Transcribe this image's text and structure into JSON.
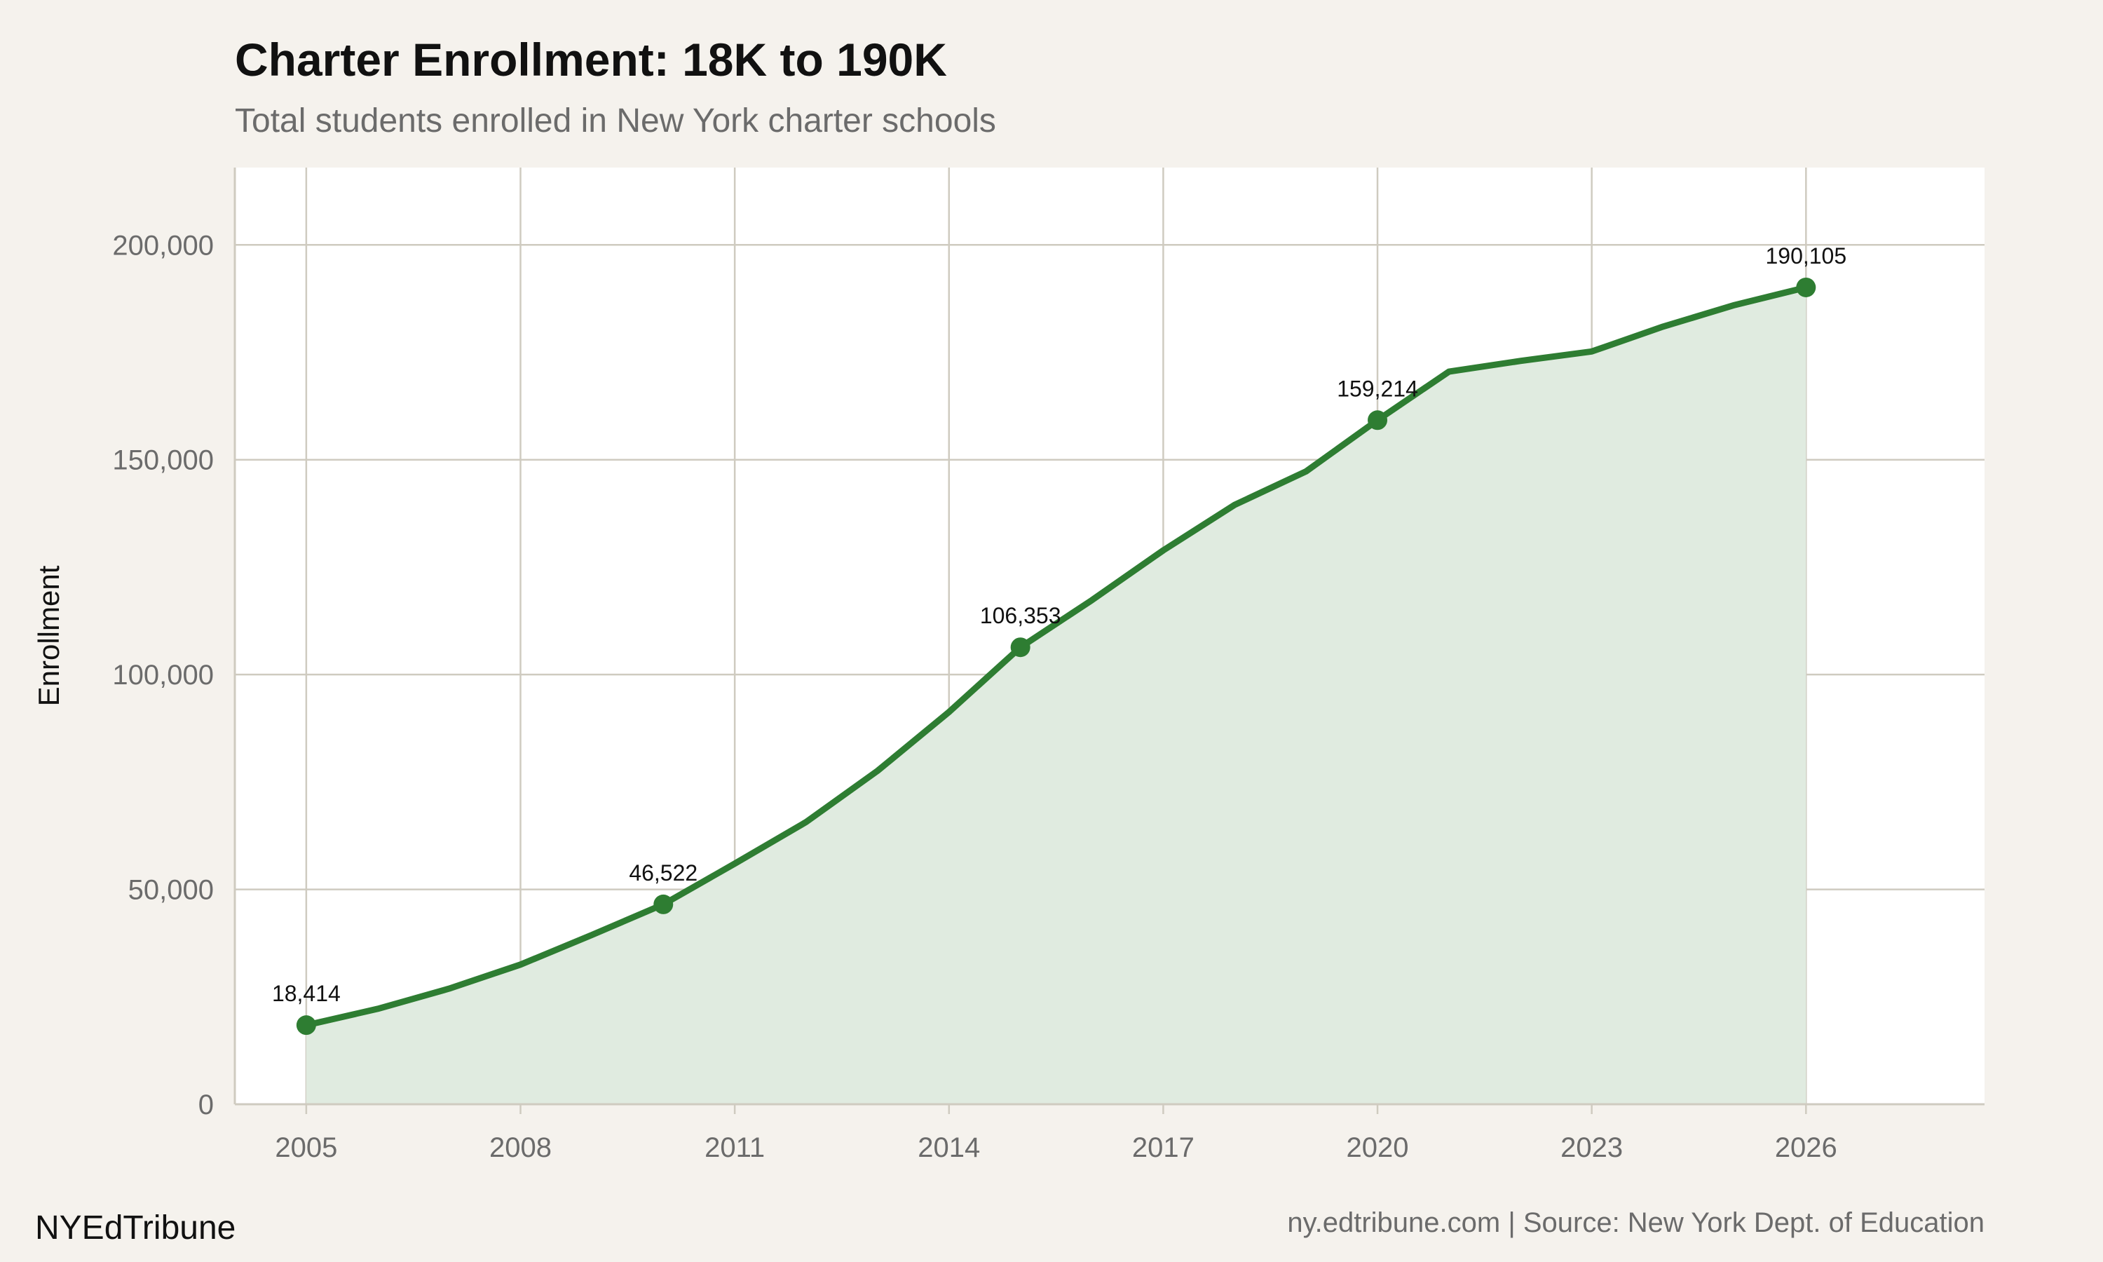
{
  "chart_data": {
    "type": "area",
    "title": "Charter Enrollment: 18K to 190K",
    "subtitle": "Total students enrolled in New York charter schools",
    "xlabel": "",
    "ylabel": "Enrollment",
    "x": [
      2005,
      2006,
      2007,
      2008,
      2009,
      2010,
      2011,
      2012,
      2013,
      2014,
      2015,
      2016,
      2017,
      2018,
      2019,
      2020,
      2021,
      2022,
      2023,
      2024,
      2025,
      2026
    ],
    "values": [
      18414,
      22200,
      26900,
      32500,
      39400,
      46522,
      56000,
      65700,
      77600,
      91300,
      106353,
      117300,
      128900,
      139500,
      147300,
      159214,
      170500,
      173000,
      175200,
      181000,
      186000,
      190105
    ],
    "labeled_points": [
      {
        "x": 2005,
        "label": "18,414"
      },
      {
        "x": 2010,
        "label": "46,522"
      },
      {
        "x": 2015,
        "label": "106,353"
      },
      {
        "x": 2020,
        "label": "159,214"
      },
      {
        "x": 2026,
        "label": "190,105"
      }
    ],
    "xlim": [
      2004,
      2028.5
    ],
    "ylim": [
      0,
      218000
    ],
    "xticks": [
      2005,
      2008,
      2011,
      2014,
      2017,
      2020,
      2023,
      2026
    ],
    "yticks": [
      0,
      50000,
      100000,
      150000,
      200000
    ],
    "ytick_labels": [
      "0",
      "50,000",
      "100,000",
      "150,000",
      "200,000"
    ],
    "grid": true,
    "line_color": "#2e7d32",
    "fill_color": "#e0ebe0",
    "background": "#f5f2ed",
    "plot_background": "#ffffff"
  },
  "footer": {
    "brand": "NYEdTribune",
    "source": "ny.edtribune.com | Source: New York Dept. of Education"
  }
}
